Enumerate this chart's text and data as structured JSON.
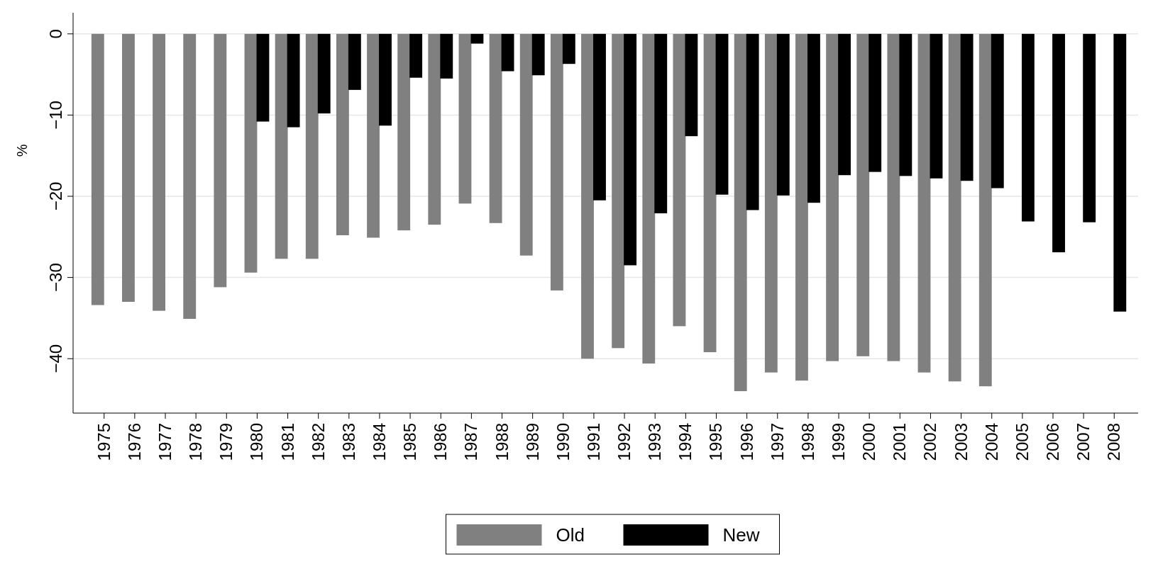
{
  "chart_data": {
    "type": "bar",
    "ylabel": "%",
    "categories": [
      "1975",
      "1976",
      "1977",
      "1978",
      "1979",
      "1980",
      "1981",
      "1982",
      "1983",
      "1984",
      "1985",
      "1986",
      "1987",
      "1988",
      "1989",
      "1990",
      "1991",
      "1992",
      "1993",
      "1994",
      "1995",
      "1996",
      "1997",
      "1998",
      "1999",
      "2000",
      "2001",
      "2002",
      "2003",
      "2004",
      "2005",
      "2006",
      "2007",
      "2008"
    ],
    "series": [
      {
        "name": "Old",
        "color": "#808080",
        "values": [
          -33.4,
          -33.0,
          -34.1,
          -35.1,
          -31.2,
          -29.4,
          -27.7,
          -27.7,
          -24.8,
          -25.1,
          -24.2,
          -23.5,
          -20.9,
          -23.3,
          -27.3,
          -31.6,
          -40.0,
          -38.7,
          -40.6,
          -36.0,
          -39.2,
          -44.0,
          -41.7,
          -42.7,
          -40.3,
          -39.7,
          -40.3,
          -41.7,
          -42.8,
          -43.4,
          null,
          null,
          null,
          null
        ]
      },
      {
        "name": "New",
        "color": "#000000",
        "values": [
          null,
          null,
          null,
          null,
          null,
          -10.8,
          -11.5,
          -9.8,
          -6.9,
          -11.3,
          -5.4,
          -5.5,
          -1.2,
          -4.6,
          -5.1,
          -3.7,
          -20.5,
          -28.5,
          -22.1,
          -12.6,
          -19.8,
          -21.7,
          -19.9,
          -20.8,
          -17.4,
          -17.0,
          -17.5,
          -17.8,
          -18.1,
          -19.0,
          -23.1,
          -26.9,
          -23.2,
          -34.2
        ]
      }
    ],
    "ylim": [
      -46.7,
      2.6
    ],
    "yticks": [
      0,
      -10,
      -20,
      -30,
      -40
    ],
    "grid": "y",
    "legend": "bottom"
  }
}
